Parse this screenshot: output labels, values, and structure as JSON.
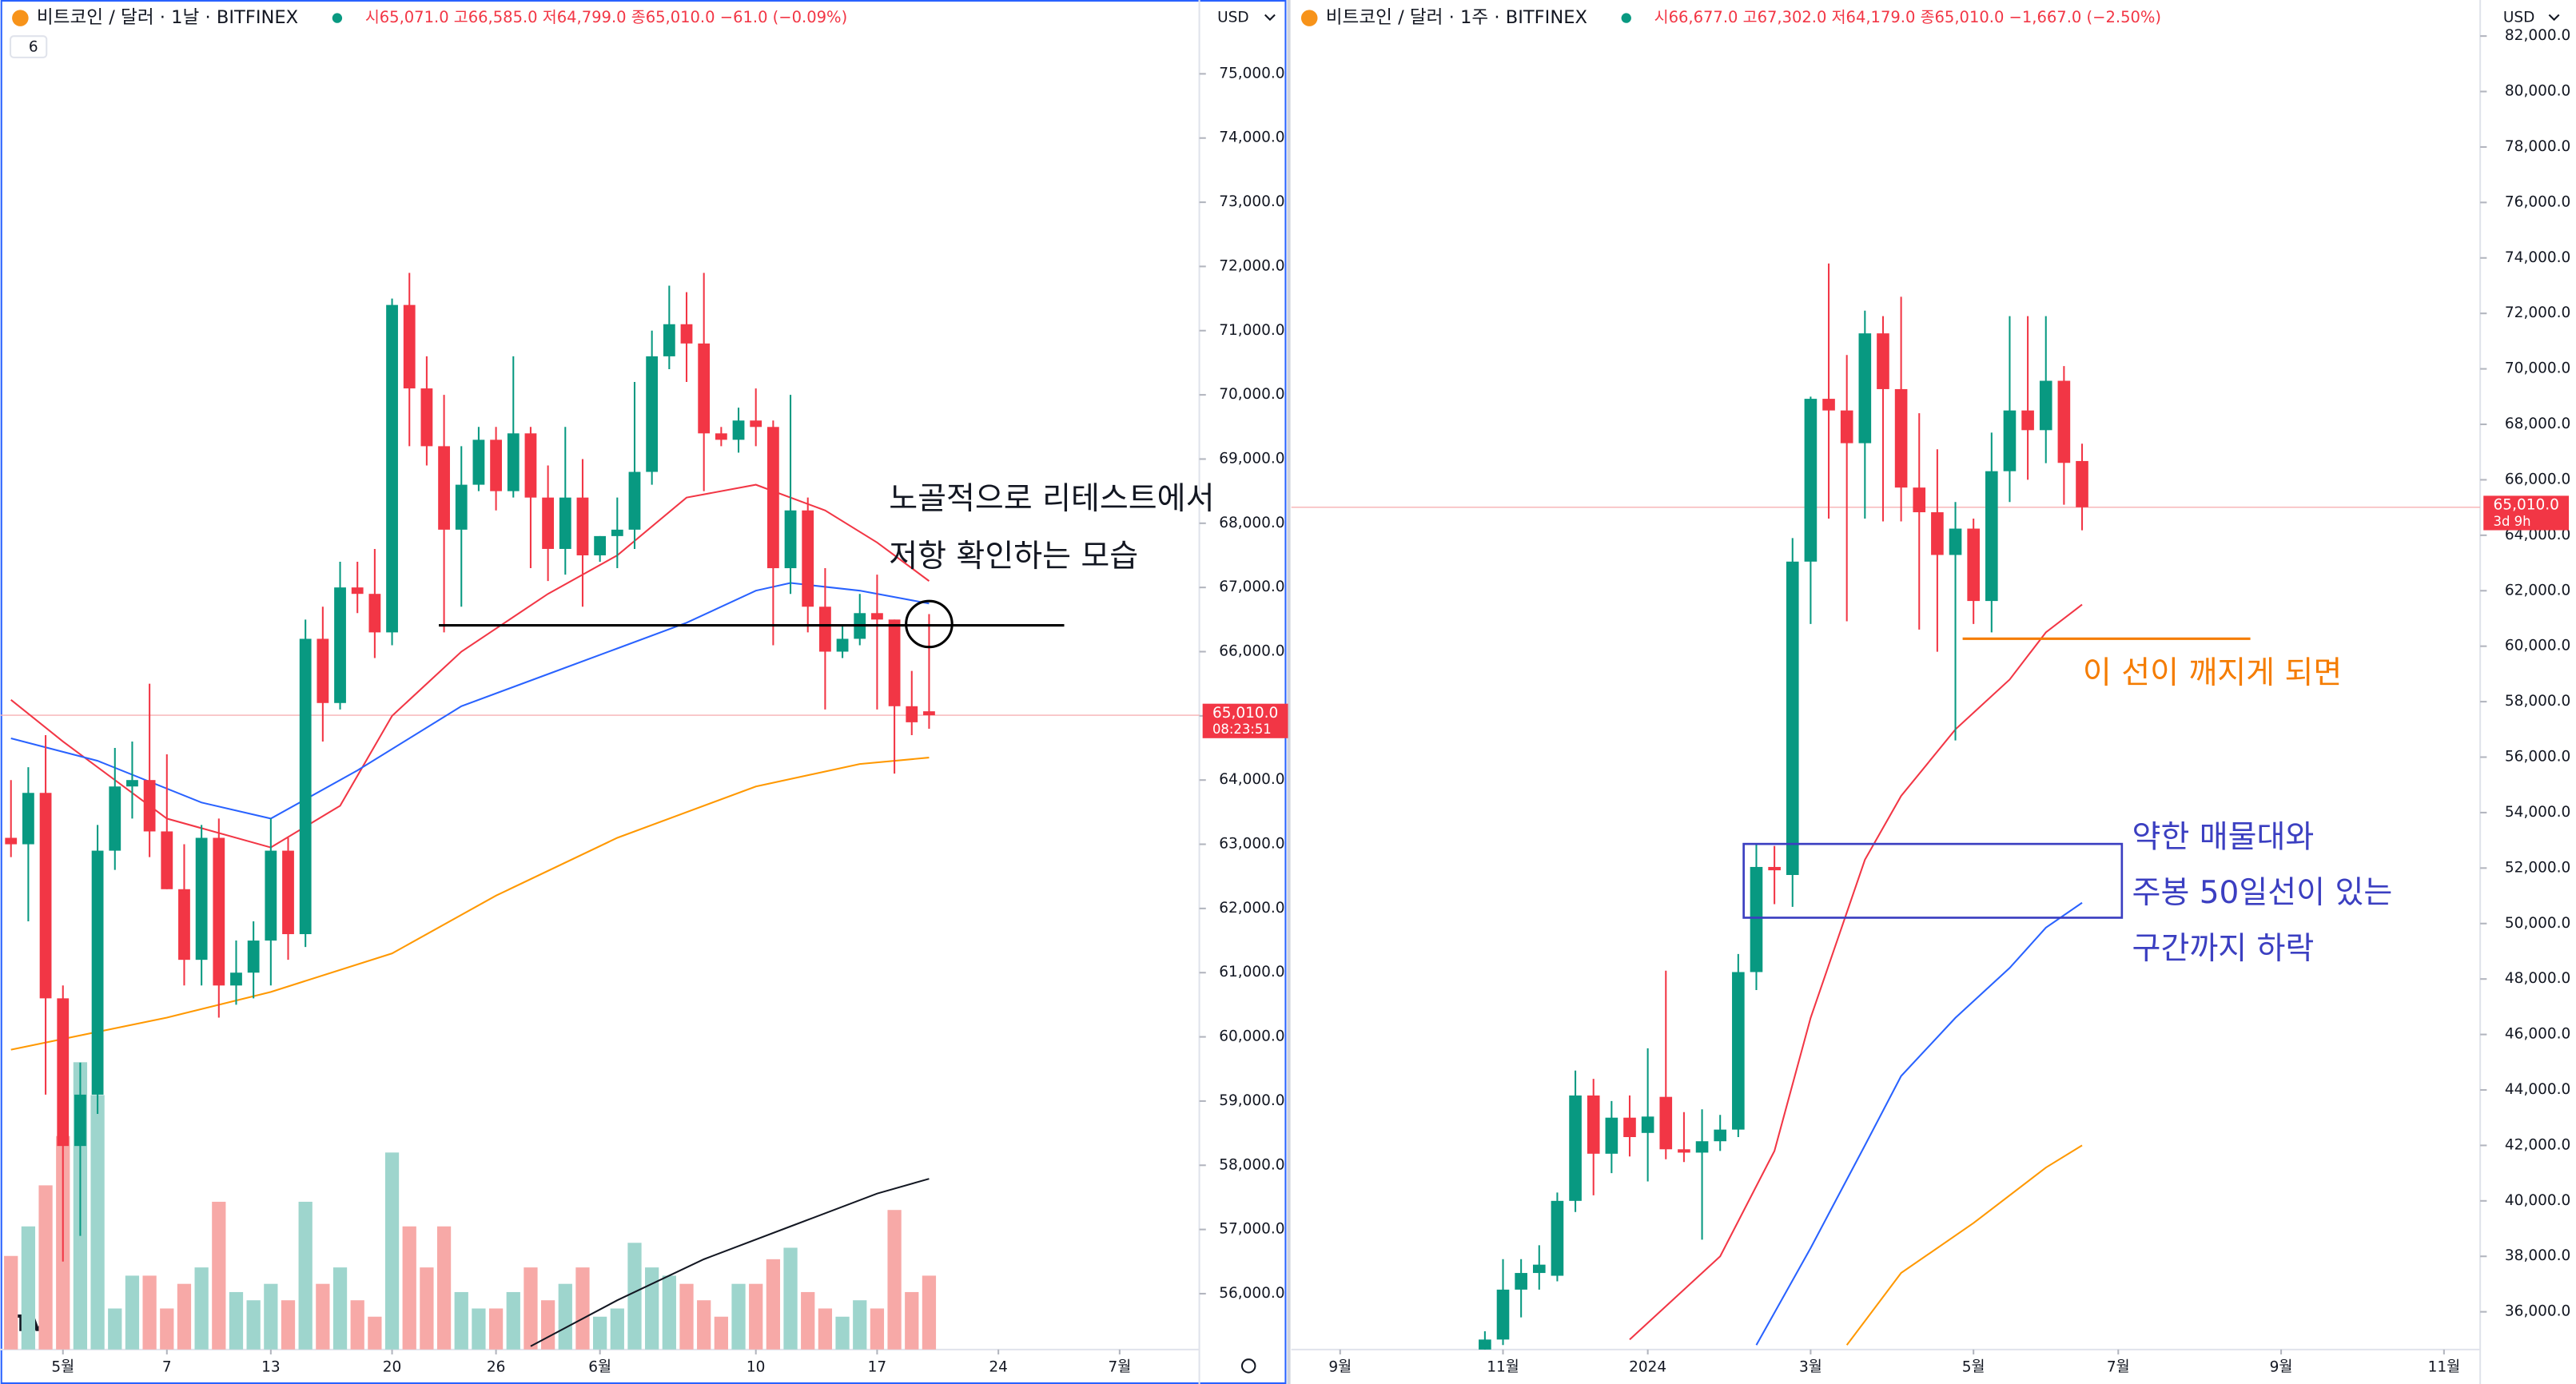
{
  "chart_data": [
    {
      "type": "candlestick",
      "title": "비트코인 / 달러 · 1날 · BITFINEX",
      "subtitle": "시65,071.0 고66,585.0 저64,799.0 종65,010.0 −61.0 (−0.09%)",
      "indicators": "6",
      "currency": "USD",
      "up_color": "#089981",
      "down_color": "#f23645",
      "up_volume_color": "#9ed5cd",
      "down_volume_color": "#f7a9a7",
      "xlim": [
        -0.6,
        68.6
      ],
      "ylim": [
        55130,
        76150
      ],
      "xticks": [
        {
          "value": 3,
          "label": "5월"
        },
        {
          "value": 9,
          "label": "7"
        },
        {
          "value": 15,
          "label": "13"
        },
        {
          "value": 22,
          "label": "20"
        },
        {
          "value": 28,
          "label": "26"
        },
        {
          "value": 34,
          "label": "6월"
        },
        {
          "value": 43,
          "label": "10"
        },
        {
          "value": 50,
          "label": "17"
        },
        {
          "value": 57,
          "label": "24"
        },
        {
          "value": 64,
          "label": "7월"
        }
      ],
      "yticks": [
        {
          "value": 56000,
          "label": "56,000.0"
        },
        {
          "value": 57000,
          "label": "57,000.0"
        },
        {
          "value": 58000,
          "label": "58,000.0"
        },
        {
          "value": 59000,
          "label": "59,000.0"
        },
        {
          "value": 60000,
          "label": "60,000.0"
        },
        {
          "value": 61000,
          "label": "61,000.0"
        },
        {
          "value": 62000,
          "label": "62,000.0"
        },
        {
          "value": 63000,
          "label": "63,000.0"
        },
        {
          "value": 64000,
          "label": "64,000.0"
        },
        {
          "value": 65000,
          "label": "65,000.0"
        },
        {
          "value": 66000,
          "label": "66,000.0"
        },
        {
          "value": 67000,
          "label": "67,000.0"
        },
        {
          "value": 68000,
          "label": "68,000.0"
        },
        {
          "value": 69000,
          "label": "69,000.0"
        },
        {
          "value": 70000,
          "label": "70,000.0"
        },
        {
          "value": 71000,
          "label": "71,000.0"
        },
        {
          "value": 72000,
          "label": "72,000.0"
        },
        {
          "value": 73000,
          "label": "73,000.0"
        },
        {
          "value": 74000,
          "label": "74,000.0"
        },
        {
          "value": 75000,
          "label": "75,000.0"
        }
      ],
      "x": [
        0,
        1,
        2,
        3,
        4,
        5,
        6,
        7,
        8,
        9,
        10,
        11,
        12,
        13,
        14,
        15,
        16,
        17,
        18,
        19,
        20,
        21,
        22,
        23,
        24,
        25,
        26,
        27,
        28,
        29,
        30,
        31,
        32,
        33,
        34,
        35,
        36,
        37,
        38,
        39,
        40,
        41,
        42,
        43,
        44,
        45,
        46,
        47,
        48,
        49,
        50,
        51,
        52,
        53
      ],
      "open": [
        63100,
        63000,
        63800,
        60600,
        58300,
        59100,
        62900,
        63900,
        64000,
        63200,
        62300,
        61200,
        63100,
        60800,
        61000,
        61500,
        62900,
        61600,
        66200,
        65200,
        67000,
        66900,
        66300,
        71400,
        70100,
        69200,
        67900,
        68600,
        69300,
        68500,
        69400,
        68400,
        67600,
        68400,
        67500,
        67800,
        67900,
        68800,
        70600,
        71100,
        70800,
        69400,
        69300,
        69600,
        69500,
        67300,
        68200,
        66700,
        66000,
        66200,
        66600,
        66500,
        65150,
        65071
      ],
      "high": [
        64000,
        64200,
        64700,
        60800,
        59600,
        63300,
        64500,
        64600,
        65500,
        64400,
        63000,
        63300,
        63400,
        61500,
        61800,
        63400,
        63100,
        66500,
        66700,
        67400,
        67400,
        67600,
        71500,
        71900,
        70600,
        70000,
        69200,
        69500,
        69500,
        70600,
        69500,
        68900,
        69500,
        69000,
        67800,
        68400,
        70200,
        71000,
        71700,
        71600,
        71900,
        69500,
        69800,
        70100,
        69600,
        70000,
        68400,
        67300,
        66400,
        66900,
        67200,
        66500,
        65700,
        66585
      ],
      "low": [
        62800,
        61800,
        59100,
        56500,
        56900,
        58800,
        62600,
        63400,
        62800,
        62300,
        60800,
        60800,
        60300,
        60500,
        60600,
        60800,
        61200,
        61400,
        64600,
        65100,
        66600,
        65900,
        66100,
        69200,
        68900,
        66300,
        66700,
        68500,
        68200,
        68400,
        67300,
        67100,
        67200,
        66700,
        67400,
        67300,
        67600,
        68600,
        70400,
        70200,
        68500,
        69200,
        69100,
        69200,
        66100,
        66900,
        66300,
        65100,
        65900,
        66100,
        65100,
        64100,
        64700,
        64799
      ],
      "close": [
        63000,
        63800,
        60600,
        58300,
        59100,
        62900,
        63900,
        64000,
        63200,
        62300,
        61200,
        63100,
        60800,
        61000,
        61500,
        62900,
        61600,
        66200,
        65200,
        67000,
        66900,
        66300,
        71400,
        70100,
        69200,
        67900,
        68600,
        69300,
        68500,
        69400,
        68400,
        67600,
        68400,
        67500,
        67800,
        67900,
        68800,
        70600,
        71100,
        70800,
        69400,
        69300,
        69600,
        69500,
        67300,
        68200,
        66700,
        66000,
        66200,
        66600,
        66500,
        65150,
        64900,
        65010
      ],
      "volume": [
        57,
        75,
        100,
        130,
        175,
        155,
        25,
        45,
        45,
        25,
        40,
        50,
        90,
        35,
        30,
        40,
        30,
        90,
        40,
        50,
        30,
        20,
        120,
        75,
        50,
        75,
        35,
        25,
        25,
        35,
        50,
        30,
        40,
        50,
        20,
        25,
        65,
        50,
        45,
        40,
        30,
        20,
        40,
        40,
        55,
        62,
        35,
        25,
        20,
        30,
        25,
        85,
        35,
        45
      ],
      "volume_ma": {
        "color": "#131722",
        "x": [
          30,
          35,
          40,
          45,
          50,
          53
        ],
        "values": [
          2,
          30,
          55,
          75,
          95,
          104
        ]
      },
      "ma_lines": [
        {
          "color": "#f23645",
          "x": [
            0,
            3,
            9,
            15,
            19,
            22,
            26,
            31,
            35,
            39,
            43,
            47,
            50,
            53
          ],
          "values": [
            65250,
            64600,
            63400,
            62950,
            63600,
            65000,
            66000,
            66900,
            67500,
            68400,
            68600,
            68200,
            67700,
            67100
          ]
        },
        {
          "color": "#2962ff",
          "x": [
            0,
            5,
            11,
            15,
            20,
            26,
            31,
            35,
            39,
            43,
            45,
            49,
            53
          ],
          "values": [
            64650,
            64300,
            63650,
            63400,
            64150,
            65150,
            65650,
            66050,
            66450,
            66950,
            67070,
            66950,
            66750
          ]
        },
        {
          "color": "#ff9800",
          "x": [
            0,
            9,
            15,
            22,
            28,
            35,
            43,
            49,
            53
          ],
          "values": [
            59800,
            60300,
            60700,
            61300,
            62200,
            63100,
            63900,
            64250,
            64350
          ]
        }
      ],
      "last_price": {
        "value": 65010,
        "label": "65,010.0"
      },
      "countdown": "08:23:51",
      "annotations": [
        {
          "kind": "hline",
          "value": 66410,
          "x": [
            24.7,
            60.8
          ],
          "color": "#000000"
        },
        {
          "kind": "circle",
          "value": 66430,
          "x": 53,
          "color": "#000000"
        }
      ],
      "notes": [
        "노골적으로 리테스트에서",
        "저항 확인하는 모습"
      ]
    },
    {
      "type": "candlestick",
      "title": "비트코인 / 달러 · 1주 · BITFINEX",
      "subtitle": "시66,677.0 고67,302.0 저64,179.0 종65,010.0 −1,667.0 (−2.50%)",
      "currency": "USD",
      "up_color": "#089981",
      "down_color": "#f23645",
      "xlim": [
        -10.7,
        55
      ],
      "ylim": [
        34640,
        83300
      ],
      "xticks": [
        {
          "value": -8,
          "label": "9월"
        },
        {
          "value": 1,
          "label": "11월"
        },
        {
          "value": 9,
          "label": "2024"
        },
        {
          "value": 18,
          "label": "3월"
        },
        {
          "value": 27,
          "label": "5월"
        },
        {
          "value": 35,
          "label": "7월"
        },
        {
          "value": 44,
          "label": "9월"
        },
        {
          "value": 53,
          "label": "11월"
        }
      ],
      "yticks": [
        {
          "value": 36000,
          "label": "36,000.0"
        },
        {
          "value": 38000,
          "label": "38,000.0"
        },
        {
          "value": 40000,
          "label": "40,000.0"
        },
        {
          "value": 42000,
          "label": "42,000.0"
        },
        {
          "value": 44000,
          "label": "44,000.0"
        },
        {
          "value": 46000,
          "label": "46,000.0"
        },
        {
          "value": 48000,
          "label": "48,000.0"
        },
        {
          "value": 50000,
          "label": "50,000.0"
        },
        {
          "value": 52000,
          "label": "52,000.0"
        },
        {
          "value": 54000,
          "label": "54,000.0"
        },
        {
          "value": 56000,
          "label": "56,000.0"
        },
        {
          "value": 58000,
          "label": "58,000.0"
        },
        {
          "value": 60000,
          "label": "60,000.0"
        },
        {
          "value": 62000,
          "label": "62,000.0"
        },
        {
          "value": 64000,
          "label": "64,000.0"
        },
        {
          "value": 66000,
          "label": "66,000.0"
        },
        {
          "value": 68000,
          "label": "68,000.0"
        },
        {
          "value": 70000,
          "label": "70,000.0"
        },
        {
          "value": 72000,
          "label": "72,000.0"
        },
        {
          "value": 74000,
          "label": "74,000.0"
        },
        {
          "value": 76000,
          "label": "76,000.0"
        },
        {
          "value": 78000,
          "label": "78,000.0"
        },
        {
          "value": 80000,
          "label": "80,000.0"
        },
        {
          "value": 82000,
          "label": "82,000.0"
        }
      ],
      "x": [
        0,
        1,
        2,
        3,
        4,
        5,
        6,
        7,
        8,
        9,
        10,
        11,
        12,
        13,
        14,
        15,
        16,
        17,
        18,
        19,
        20,
        21,
        22,
        23,
        24,
        25,
        26,
        27,
        28,
        29,
        30,
        31,
        32,
        33
      ],
      "open": [
        34600,
        35000,
        36800,
        37400,
        37300,
        40000,
        43800,
        41700,
        43000,
        42450,
        43750,
        41860,
        41740,
        42150,
        42570,
        48250,
        52040,
        51750,
        63050,
        68920,
        68500,
        67320,
        71280,
        69270,
        65720,
        64830,
        63290,
        64240,
        61630,
        66310,
        68500,
        67790,
        69570,
        66677
      ],
      "high": [
        35300,
        37900,
        37900,
        38400,
        40300,
        44700,
        44400,
        43600,
        43800,
        45500,
        48300,
        43200,
        43300,
        43100,
        48900,
        52900,
        52800,
        63900,
        69000,
        73800,
        70500,
        72100,
        71900,
        72600,
        68400,
        67100,
        65200,
        64600,
        67700,
        71900,
        71900,
        71900,
        70100,
        67302
      ],
      "low": [
        34400,
        34800,
        35800,
        36800,
        37100,
        39600,
        40200,
        41000,
        41600,
        40700,
        41500,
        41400,
        38600,
        41800,
        42300,
        47600,
        50700,
        50600,
        60800,
        64600,
        60900,
        64600,
        64500,
        64500,
        60600,
        59800,
        56600,
        60800,
        60500,
        65200,
        66000,
        66600,
        65100,
        64179
      ],
      "close": [
        35000,
        36800,
        37400,
        37700,
        40000,
        43800,
        41700,
        43000,
        42300,
        43040,
        41860,
        41740,
        42150,
        42570,
        48250,
        52040,
        51920,
        63050,
        68920,
        68500,
        67320,
        71280,
        69270,
        65720,
        64830,
        63290,
        64240,
        61630,
        66310,
        68500,
        67790,
        69570,
        66610,
        65010
      ],
      "ma_lines": [
        {
          "color": "#f23645",
          "x": [
            8,
            13,
            16,
            18,
            21,
            23,
            26,
            29,
            31,
            33
          ],
          "values": [
            35000,
            38000,
            41800,
            46600,
            52300,
            54600,
            57000,
            58800,
            60500,
            61500
          ]
        },
        {
          "color": "#2962ff",
          "x": [
            15,
            18,
            21,
            23,
            26,
            29,
            31,
            33
          ],
          "values": [
            34800,
            38300,
            42000,
            44500,
            46600,
            48400,
            49850,
            50750
          ]
        },
        {
          "color": "#ff9800",
          "x": [
            20,
            23,
            27,
            31,
            33
          ],
          "values": [
            34800,
            37400,
            39200,
            41200,
            42000
          ]
        }
      ],
      "last_price": {
        "value": 65010,
        "label": "65,010.0"
      },
      "countdown": "3d 9h",
      "annotations": [
        {
          "kind": "hline",
          "value": 60270,
          "x": [
            26.4,
            42.3
          ],
          "color": "#f57c00"
        },
        {
          "kind": "rect",
          "value": [
            50210,
            52870
          ],
          "x": [
            14.3,
            35.2
          ],
          "color": "#3b3fc1"
        }
      ],
      "notes": [
        "이 선이 깨지게 되면",
        "약한 매물대와",
        "주봉 50일선이 있는",
        "구간까지 하락"
      ]
    }
  ]
}
